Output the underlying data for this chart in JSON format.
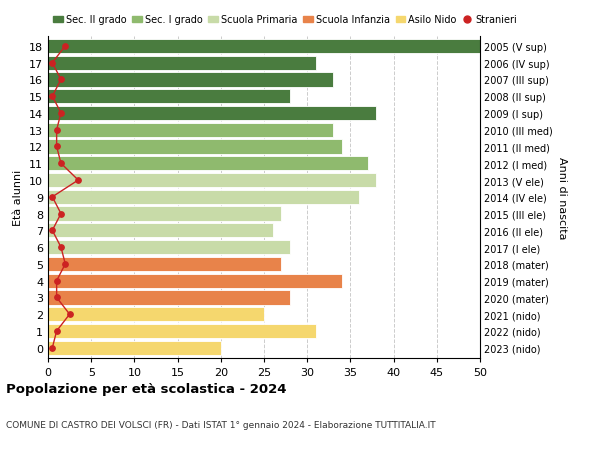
{
  "ages": [
    0,
    1,
    2,
    3,
    4,
    5,
    6,
    7,
    8,
    9,
    10,
    11,
    12,
    13,
    14,
    15,
    16,
    17,
    18
  ],
  "bar_values": [
    20,
    31,
    25,
    28,
    34,
    27,
    28,
    26,
    27,
    36,
    38,
    37,
    34,
    33,
    38,
    28,
    33,
    31,
    50
  ],
  "stranieri": [
    0.5,
    1.0,
    2.5,
    1.0,
    1.0,
    2.0,
    1.5,
    0.5,
    1.5,
    0.5,
    3.5,
    1.5,
    1.0,
    1.0,
    1.5,
    0.5,
    1.5,
    0.5,
    2.0
  ],
  "right_labels": [
    "2023 (nido)",
    "2022 (nido)",
    "2021 (nido)",
    "2020 (mater)",
    "2019 (mater)",
    "2018 (mater)",
    "2017 (I ele)",
    "2016 (II ele)",
    "2015 (III ele)",
    "2014 (IV ele)",
    "2013 (V ele)",
    "2012 (I med)",
    "2011 (II med)",
    "2010 (III med)",
    "2009 (I sup)",
    "2008 (II sup)",
    "2007 (III sup)",
    "2006 (IV sup)",
    "2005 (V sup)"
  ],
  "bar_colors": [
    "#f5d76e",
    "#f5d76e",
    "#f5d76e",
    "#e8834a",
    "#e8834a",
    "#e8834a",
    "#c8dba8",
    "#c8dba8",
    "#c8dba8",
    "#c8dba8",
    "#c8dba8",
    "#8fba6e",
    "#8fba6e",
    "#8fba6e",
    "#4a7c3f",
    "#4a7c3f",
    "#4a7c3f",
    "#4a7c3f",
    "#4a7c3f"
  ],
  "legend_labels": [
    "Sec. II grado",
    "Sec. I grado",
    "Scuola Primaria",
    "Scuola Infanzia",
    "Asilo Nido",
    "Stranieri"
  ],
  "legend_colors": [
    "#4a7c3f",
    "#8fba6e",
    "#c8dba8",
    "#e8834a",
    "#f5d76e",
    "#cc2222"
  ],
  "title": "Popolazione per età scolastica - 2024",
  "subtitle": "COMUNE DI CASTRO DEI VOLSCI (FR) - Dati ISTAT 1° gennaio 2024 - Elaborazione TUTTITALIA.IT",
  "ylabel_left": "Età alunni",
  "ylabel_right": "Anni di nascita",
  "xlim": [
    0,
    50
  ],
  "xticks": [
    0,
    5,
    10,
    15,
    20,
    25,
    30,
    35,
    40,
    45,
    50
  ],
  "bar_height": 0.85,
  "stranieri_color": "#cc2222",
  "grid_color": "#cccccc",
  "background_color": "#ffffff"
}
